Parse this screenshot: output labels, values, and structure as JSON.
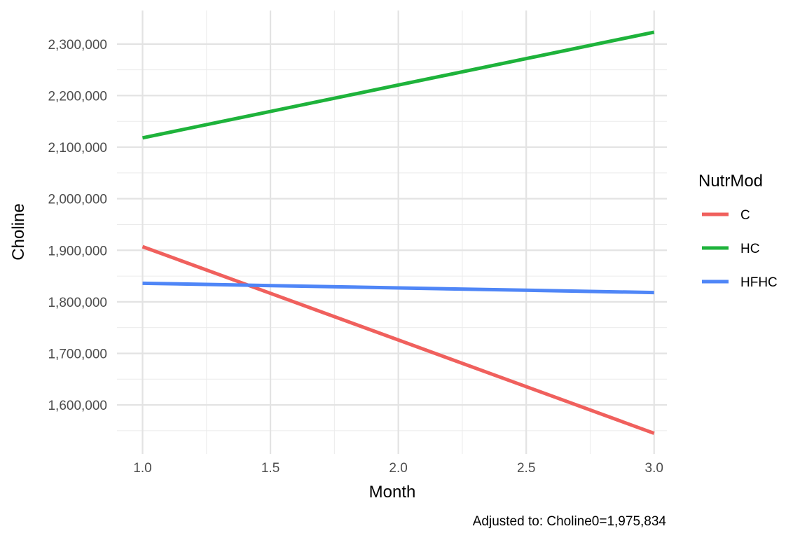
{
  "chart_data": {
    "type": "line",
    "xlabel": "Month",
    "ylabel": "Choline",
    "caption": "Adjusted to: Choline0=1,975,834",
    "xlim": [
      0.9,
      3.05
    ],
    "ylim": [
      1505000,
      2365000
    ],
    "x_ticks": [
      1.0,
      1.5,
      2.0,
      2.5,
      3.0
    ],
    "x_tick_labels": [
      "1.0",
      "1.5",
      "2.0",
      "2.5",
      "3.0"
    ],
    "y_ticks": [
      1600000,
      1700000,
      1800000,
      1900000,
      2000000,
      2100000,
      2200000,
      2300000
    ],
    "y_tick_labels": [
      "1,600,000",
      "1,700,000",
      "1,800,000",
      "1,900,000",
      "2,000,000",
      "2,100,000",
      "2,200,000",
      "2,300,000"
    ],
    "grid": true,
    "legend": {
      "title": "NutrMod",
      "position": "right"
    },
    "series": [
      {
        "name": "C",
        "color": "#F0605D",
        "x": [
          1.0,
          3.0
        ],
        "y": [
          1907000,
          1545000
        ]
      },
      {
        "name": "HC",
        "color": "#1EB33B",
        "x": [
          1.0,
          3.0
        ],
        "y": [
          2118000,
          2323000
        ]
      },
      {
        "name": "HFHC",
        "color": "#4F86F7",
        "x": [
          1.0,
          3.0
        ],
        "y": [
          1836000,
          1818000
        ]
      }
    ]
  }
}
